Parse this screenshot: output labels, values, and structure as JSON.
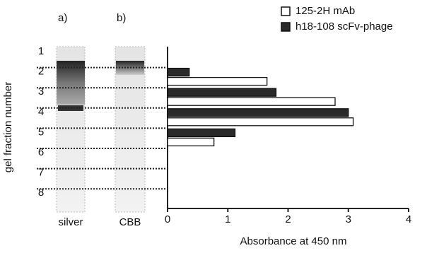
{
  "chart_data": {
    "type": "barh",
    "categories": [
      "1",
      "2",
      "3",
      "4",
      "5",
      "6",
      "7",
      "8"
    ],
    "series": [
      {
        "name": "125-2H mAb",
        "color": "#ffffff",
        "values": [
          0,
          1.65,
          2.78,
          3.08,
          0.77,
          0,
          0,
          0
        ]
      },
      {
        "name": "h18-108 scFv-phage",
        "color": "#2a2a2a",
        "values": [
          0,
          0.36,
          1.8,
          3.0,
          1.12,
          0,
          0,
          0
        ]
      }
    ],
    "xlim": [
      0,
      4
    ],
    "xticks": [
      0,
      1,
      2,
      3,
      4
    ],
    "xlabel": "Absorbance at 450 nm",
    "ylabel": "gel fraction number",
    "lanes": [
      {
        "label": "a)",
        "name": "silver"
      },
      {
        "label": "b)",
        "name": "CBB"
      }
    ],
    "legend": "upper right"
  }
}
